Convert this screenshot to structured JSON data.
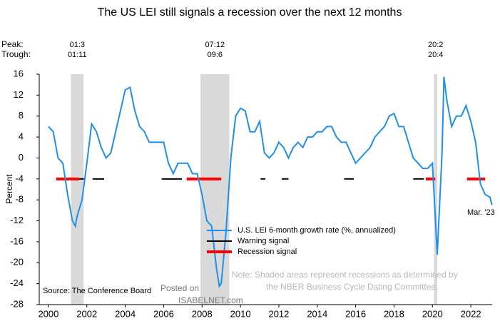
{
  "chart_data": {
    "type": "line",
    "title": "The US LEI still signals a recession over the next 12 months",
    "y_label": "Percent",
    "peak_label": "Peak:",
    "trough_label": "Trough:",
    "recessions": [
      {
        "peak": "01:3",
        "trough": "01:11",
        "start": 2001.17,
        "end": 2001.83
      },
      {
        "peak": "07:12",
        "trough": "09:6",
        "start": 2007.92,
        "end": 2009.42
      },
      {
        "peak": "20:2",
        "trough": "20:4",
        "start": 2020.08,
        "end": 2020.25
      }
    ],
    "x": [
      2000,
      2000.25,
      2000.5,
      2000.75,
      2001,
      2001.25,
      2001.4,
      2001.5,
      2001.75,
      2002,
      2002.25,
      2002.5,
      2002.75,
      2003,
      2003.25,
      2003.5,
      2003.75,
      2004,
      2004.25,
      2004.5,
      2004.75,
      2005,
      2005.25,
      2005.5,
      2005.75,
      2006,
      2006.25,
      2006.5,
      2006.75,
      2007,
      2007.25,
      2007.5,
      2007.75,
      2008,
      2008.25,
      2008.5,
      2008.75,
      2008.9,
      2009,
      2009.25,
      2009.5,
      2009.75,
      2010,
      2010.25,
      2010.5,
      2010.75,
      2011,
      2011.25,
      2011.5,
      2011.75,
      2012,
      2012.25,
      2012.5,
      2012.75,
      2013,
      2013.25,
      2013.5,
      2013.75,
      2014,
      2014.25,
      2014.5,
      2014.75,
      2015,
      2015.25,
      2015.5,
      2015.75,
      2016,
      2016.25,
      2016.5,
      2016.75,
      2017,
      2017.25,
      2017.5,
      2017.75,
      2018,
      2018.25,
      2018.5,
      2018.75,
      2019,
      2019.25,
      2019.5,
      2019.75,
      2020,
      2020.25,
      2020.5,
      2020.6,
      2020.75,
      2021,
      2021.25,
      2021.5,
      2021.75,
      2022,
      2022.25,
      2022.5,
      2022.75,
      2023,
      2023.1
    ],
    "series": [
      {
        "name": "U.S. LEI 6-month growth rate (%, annualized)",
        "color": "#1f8fe8",
        "values": [
          6,
          5,
          0,
          -1,
          -7,
          -12,
          -13,
          -11,
          -8,
          -1,
          6.5,
          5,
          2,
          0,
          1,
          5,
          9,
          13,
          13.5,
          9,
          6,
          5,
          3,
          3,
          3,
          3,
          -1,
          -3,
          -1,
          -1,
          -1,
          -3,
          -3,
          -7,
          -12,
          -13,
          -21,
          -24.5,
          -24,
          -14,
          0,
          8,
          9.5,
          9,
          5,
          5,
          7,
          1,
          0,
          1,
          3,
          2,
          0,
          2,
          3,
          2,
          4,
          4,
          5,
          5,
          6,
          6,
          4,
          3,
          3,
          1,
          -1,
          0,
          1,
          2,
          4,
          5,
          6,
          8,
          8.5,
          6,
          6,
          3,
          0,
          -1,
          -2,
          -2,
          -1,
          -18.5,
          1,
          15.5,
          11,
          6,
          8,
          8,
          10,
          7,
          3,
          -5,
          -7,
          -7.5,
          -9
        ]
      }
    ],
    "signals": [
      {
        "name": "Warning signal",
        "color": "#000000",
        "value": -4,
        "ranges": [
          [
            2001.6,
            2001.85
          ],
          [
            2002.3,
            2002.9
          ],
          [
            2005.9,
            2006.95
          ],
          [
            2011.05,
            2011.3
          ],
          [
            2012.15,
            2012.5
          ],
          [
            2015.4,
            2015.9
          ],
          [
            2019.0,
            2019.55
          ]
        ]
      },
      {
        "name": "Recession signal",
        "color": "#ff0000",
        "value": -4,
        "ranges": [
          [
            2000.4,
            2001.6
          ],
          [
            2007.2,
            2009.0
          ],
          [
            2019.65,
            2020.15
          ],
          [
            2021.8,
            2022.75
          ]
        ]
      }
    ],
    "xlim": [
      1999.52,
      2023.11
    ],
    "ylim": [
      -28,
      16
    ],
    "xticks": [
      2000,
      2002,
      2004,
      2006,
      2008,
      2010,
      2012,
      2014,
      2016,
      2018,
      2020,
      2022
    ],
    "yticks": [
      16,
      12,
      8,
      4,
      0,
      -4,
      -8,
      -12,
      -16,
      -20,
      -24,
      -28
    ],
    "end_label": "Mar. '23",
    "note": [
      "Note: Shaded areas represent recessions as determined by",
      "the NBER Business Cycle Dating Committee."
    ],
    "source": "Source: The Conference Board",
    "watermark": [
      "Posted on",
      "ISABELNET.com"
    ]
  }
}
